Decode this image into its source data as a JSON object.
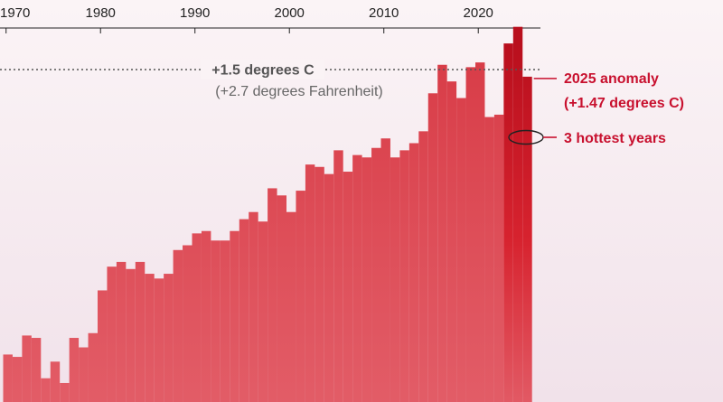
{
  "chart_data": {
    "type": "bar",
    "title": "",
    "xlabel": "",
    "ylabel": "",
    "x_tick_labels": [
      "1970",
      "1980",
      "1990",
      "2000",
      "2010",
      "2020"
    ],
    "x_ticks": [
      1970,
      1980,
      1990,
      2000,
      2010,
      2020
    ],
    "grid": false,
    "reference_line": {
      "value": 1.5,
      "label": "+1.5 degrees C",
      "sublabel": "(+2.7 degrees Fahrenheit)"
    },
    "annotations": {
      "anomaly_line1": "2025 anomaly",
      "anomaly_line2": "(+1.47 degrees C)",
      "hottest": "3 hottest years"
    },
    "categories": [
      1970,
      1971,
      1972,
      1973,
      1974,
      1975,
      1976,
      1977,
      1978,
      1979,
      1980,
      1981,
      1982,
      1983,
      1984,
      1985,
      1986,
      1987,
      1988,
      1989,
      1990,
      1991,
      1992,
      1993,
      1994,
      1995,
      1996,
      1997,
      1998,
      1999,
      2000,
      2001,
      2002,
      2003,
      2004,
      2005,
      2006,
      2007,
      2008,
      2009,
      2010,
      2011,
      2012,
      2013,
      2014,
      2015,
      2016,
      2017,
      2018,
      2019,
      2020,
      2021,
      2022,
      2023,
      2024,
      2025
    ],
    "values": [
      0.3,
      0.29,
      0.38,
      0.37,
      0.2,
      0.27,
      0.18,
      0.37,
      0.33,
      0.39,
      0.57,
      0.67,
      0.69,
      0.66,
      0.69,
      0.64,
      0.62,
      0.64,
      0.74,
      0.76,
      0.81,
      0.82,
      0.78,
      0.78,
      0.82,
      0.87,
      0.9,
      0.86,
      1.0,
      0.97,
      0.9,
      0.99,
      1.1,
      1.09,
      1.06,
      1.16,
      1.07,
      1.14,
      1.13,
      1.17,
      1.21,
      1.13,
      1.16,
      1.19,
      1.24,
      1.4,
      1.52,
      1.45,
      1.38,
      1.51,
      1.53,
      1.3,
      1.31,
      1.61,
      1.68,
      1.47
    ],
    "highlight_years": [
      2023,
      2024,
      2025
    ],
    "colors": {
      "bar": "#e04a55",
      "bar_top": "#d83c47",
      "highlight": "#d7232f",
      "highlight_dark": "#b90f1d",
      "accent_text": "#c8102e",
      "ref_line": "#555555",
      "ref_text": "#555555",
      "ref_subtext": "#666666",
      "axis_text": "#222222",
      "background_top": "#fbf4f6",
      "background_bottom": "#f1e2ea"
    }
  }
}
